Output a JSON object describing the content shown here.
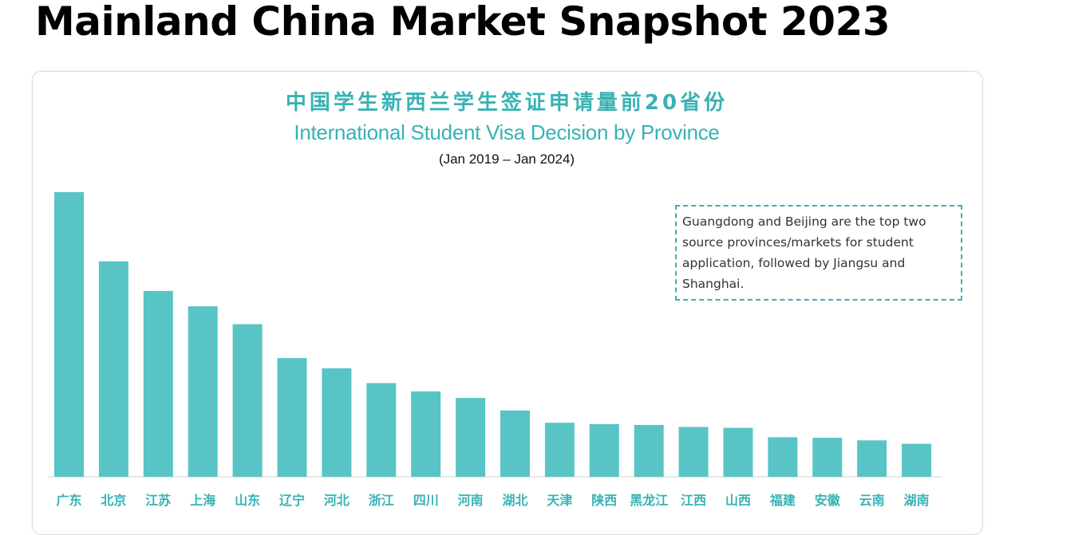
{
  "page": {
    "title": "Mainland China Market Snapshot 2023"
  },
  "colors": {
    "accent": "#38b2b4",
    "bar": "#58c4c6",
    "axis": "#d0d0d0"
  },
  "chart_data": {
    "type": "bar",
    "title": "中国学生新西兰学生签证申请量前20省份",
    "subtitle": "International Student Visa Decision by Province",
    "date_range": "(Jan 2019 – Jan 2024)",
    "xlabel": "",
    "ylabel": "",
    "grid": false,
    "categories": [
      "广东",
      "北京",
      "江苏",
      "上海",
      "山东",
      "辽宁",
      "河北",
      "浙江",
      "四川",
      "河南",
      "湖北",
      "天津",
      "陕西",
      "黑龙江",
      "江西",
      "山西",
      "福建",
      "安徽",
      "云南",
      "湖南"
    ],
    "values": [
      100,
      75.7,
      65.3,
      59.9,
      53.6,
      41.7,
      38.1,
      32.9,
      30.0,
      27.7,
      23.3,
      19.0,
      18.5,
      18.2,
      17.5,
      17.2,
      13.9,
      13.7,
      12.8,
      11.6
    ],
    "ylim": [
      0,
      100
    ],
    "annotation": "Guangdong and Beijing are the top two source provinces/markets for student application, followed by Jiangsu and Shanghai."
  }
}
